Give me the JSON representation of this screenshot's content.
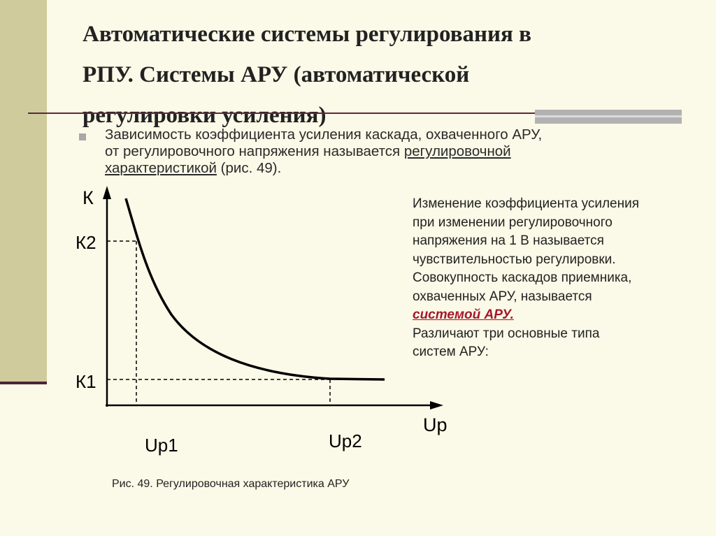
{
  "slide": {
    "title_line1": "Автоматические системы регулирования в",
    "title_line2": "РПУ. Системы АРУ (автоматической",
    "title_line3": "регулировки усиления)",
    "bullet_text_1": "Зависимость коэффициента усиления каскада, охваченного АРУ,",
    "bullet_text_2a": "от регулировочного напряжения называется ",
    "bullet_link_1": "регулировочной",
    "bullet_link_2": "характеристикой",
    "bullet_text_3": " (рис. 49).",
    "side_lines": [
      "Изменение коэффициента усиления",
      "при изменении регулировочного",
      "напряжения на 1 В называется",
      "чувствительностью регулировки.",
      "Совокупность каскадов приемника,",
      "охваченных АРУ, называется"
    ],
    "side_emphasis": "системой АРУ.",
    "side_lines_after": [
      "Различают три основные типа",
      "систем АРУ:"
    ],
    "caption": "Рис. 49. Регулировочная характеристика АРУ"
  },
  "chart_data": {
    "type": "line",
    "y_axis_label": "К",
    "x_axis_label": "Uр",
    "y_ticks": [
      "К2",
      "К1"
    ],
    "x_ticks": [
      "Uр1",
      "Uр2"
    ]
  },
  "colors": {
    "background": "#fbf9e7",
    "left_band": "#cfcb9c",
    "rule": "#5a2a38",
    "emphasis": "#a5172a"
  }
}
